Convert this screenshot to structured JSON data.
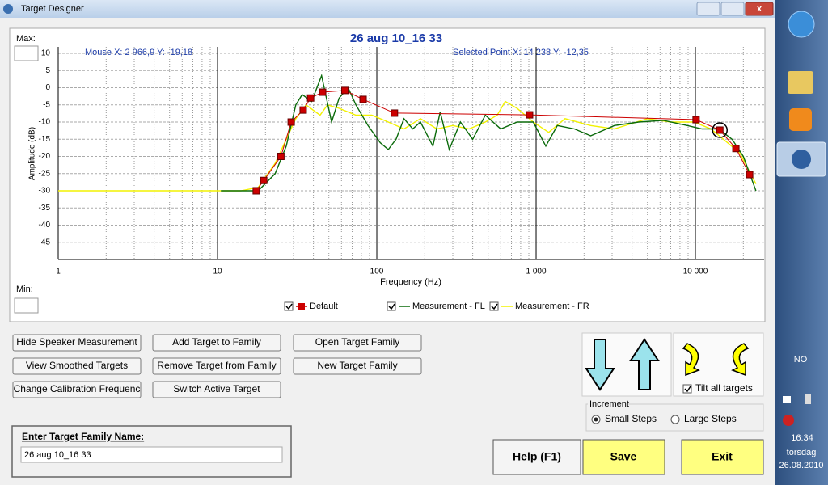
{
  "window": {
    "title": "Target Designer"
  },
  "chart_data": {
    "type": "line",
    "title": "26 aug 10_16 33",
    "mouse_readout": "Mouse  X: 2 966,9  Y: -19,18",
    "selected_readout": "Selected Point  X: 14 238  Y: -12,35",
    "max_label": "Max:",
    "min_label": "Min:",
    "xlabel": "Frequency (Hz)",
    "ylabel": "Amplitude (dB)",
    "xlog": true,
    "xlim": [
      1,
      27000
    ],
    "ylim": [
      -50,
      10
    ],
    "xticks": [
      1,
      10,
      100,
      {
        "value": 1000,
        "label": "1 000"
      },
      {
        "value": 10000,
        "label": "10 000"
      }
    ],
    "yticks": [
      10,
      5,
      0,
      -5,
      -10,
      -15,
      -20,
      -25,
      -30,
      -35,
      -40,
      -45
    ],
    "grid": true,
    "series": [
      {
        "name": "Default",
        "color": "#cc0000",
        "marker": "square",
        "x": [
          17.5,
          19.5,
          25,
          29,
          34.5,
          38.4,
          45.7,
          63,
          82,
          129,
          910,
          10100,
          14238,
          17950,
          21900
        ],
        "values": [
          -30,
          -27,
          -20,
          -10,
          -6.5,
          -3,
          -1.3,
          -0.8,
          -3.4,
          -7.4,
          -7.9,
          -9.3,
          -12.35,
          -17.7,
          -25.3
        ]
      },
      {
        "name": "Measurement - FL",
        "color": "#0a6a0a",
        "x": [
          10.5,
          18,
          23,
          27,
          31,
          34,
          39,
          45,
          52,
          58,
          66,
          74,
          88,
          105,
          118,
          132,
          148,
          168,
          188,
          225,
          250,
          285,
          335,
          400,
          480,
          600,
          760,
          960,
          1150,
          1360,
          1740,
          2200,
          3100,
          4400,
          6300,
          8900,
          11000,
          14000,
          17000,
          20000,
          24000
        ],
        "values": [
          -30,
          -30,
          -25,
          -17,
          -5,
          -2,
          -4,
          3.5,
          -10,
          -3,
          0,
          -5,
          -11,
          -16,
          -18,
          -15,
          -9,
          -12,
          -10,
          -17,
          -7,
          -18,
          -10,
          -15,
          -8,
          -12,
          -10,
          -10,
          -17,
          -11,
          -12,
          -14,
          -11,
          -10,
          -9.5,
          -11,
          -12,
          -12,
          -15,
          -20,
          -30
        ]
      },
      {
        "name": "Measurement - FR",
        "color": "#f2f200",
        "x": [
          1,
          14,
          18,
          23,
          27,
          31,
          36,
          44,
          49,
          58,
          74,
          93,
          118,
          148,
          188,
          238,
          300,
          380,
          480,
          570,
          640,
          760,
          960,
          1200,
          1520,
          2200,
          3100,
          5000,
          7000,
          9800,
          12500,
          15000,
          19000,
          24000
        ],
        "values": [
          -30,
          -30,
          -29,
          -22,
          -15,
          -9,
          -5,
          -8,
          -5,
          -6,
          -8,
          -8,
          -10,
          -12,
          -9,
          -12,
          -11,
          -12,
          -10,
          -8,
          -4,
          -6,
          -10,
          -13,
          -9,
          -11,
          -12,
          -9,
          -10,
          -10,
          -12,
          -15,
          -19,
          -28
        ]
      }
    ]
  },
  "buttons": [
    "Hide Speaker Measurement",
    "Add Target to Family",
    "Open Target Family",
    "View Smoothed Targets",
    "Remove Target from Family",
    "New Target Family",
    "Change  Calibration Frequenc",
    "Switch Active Target"
  ],
  "family": {
    "label": "Enter Target Family Name:",
    "value": "26 aug 10_16 33"
  },
  "tilt_label": "Tilt all targets",
  "increment": {
    "label": "Increment",
    "options": [
      "Small Steps",
      "Large Steps"
    ]
  },
  "actions": [
    "Help (F1)",
    "Save",
    "Exit"
  ],
  "taskbar": {
    "language": "NO",
    "time": "16:34",
    "day": "torsdag",
    "date": "26.08.2010"
  }
}
